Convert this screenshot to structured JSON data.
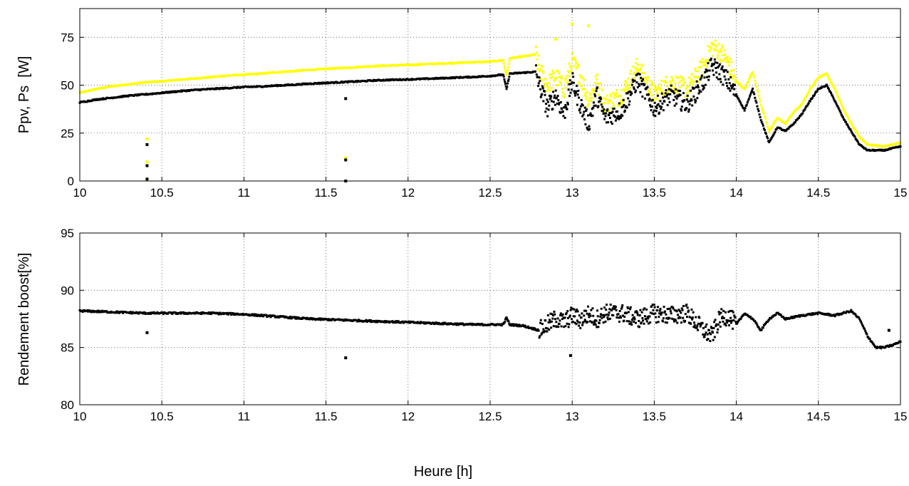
{
  "chart_data": [
    {
      "type": "scatter",
      "xlabel": "",
      "ylabel": "Ppv, Ps  [W]",
      "xlim": [
        10,
        15
      ],
      "ylim": [
        0,
        90
      ],
      "xticks": [
        10,
        10.5,
        11,
        11.5,
        12,
        12.5,
        13,
        13.5,
        14,
        14.5,
        15
      ],
      "yticks": [
        0,
        25,
        50,
        75
      ],
      "grid": true,
      "series": [
        {
          "color": "#ffff00",
          "x": [
            10,
            10.1,
            10.2,
            10.3,
            10.4,
            10.5,
            10.6,
            10.7,
            10.8,
            10.9,
            11,
            11.1,
            11.2,
            11.3,
            11.4,
            11.5,
            11.6,
            11.7,
            11.8,
            11.9,
            12,
            12.1,
            12.2,
            12.3,
            12.4,
            12.5,
            12.58,
            12.6,
            12.62,
            12.7,
            12.78,
            12.8,
            12.85,
            12.9,
            12.95,
            13,
            13.05,
            13.1,
            13.15,
            13.2,
            13.3,
            13.4,
            13.5,
            13.6,
            13.7,
            13.8,
            13.85,
            13.9,
            13.95,
            14,
            14.05,
            14.1,
            14.15,
            14.2,
            14.25,
            14.3,
            14.35,
            14.4,
            14.45,
            14.5,
            14.55,
            14.6,
            14.65,
            14.7,
            14.75,
            14.8,
            14.9,
            15
          ],
          "y": [
            46,
            48,
            49.5,
            50.5,
            51.5,
            52,
            52.8,
            53.5,
            54.2,
            55,
            55.5,
            56,
            56.8,
            57.3,
            58,
            58.5,
            59,
            59.5,
            60,
            60.3,
            60.5,
            61,
            61.3,
            61.7,
            62,
            62.3,
            63,
            55,
            64,
            65,
            66,
            58,
            50,
            55,
            48,
            62,
            55,
            42,
            52,
            40,
            45,
            60,
            45,
            52,
            48,
            60,
            70,
            68,
            62,
            52,
            48,
            57,
            40,
            26,
            33,
            30,
            36,
            40,
            48,
            54,
            56,
            48,
            38,
            30,
            23,
            19,
            18,
            20
          ],
          "outliers": [
            [
              10.41,
              22
            ],
            [
              10.41,
              10
            ],
            [
              10.41,
              1
            ],
            [
              11.62,
              12
            ],
            [
              11.62,
              0
            ],
            [
              12.9,
              74
            ],
            [
              13,
              82
            ],
            [
              13.1,
              81
            ]
          ]
        },
        {
          "color": "#000000",
          "x": [
            10,
            10.1,
            10.2,
            10.3,
            10.4,
            10.5,
            10.6,
            10.7,
            10.8,
            10.9,
            11,
            11.1,
            11.2,
            11.3,
            11.4,
            11.5,
            11.6,
            11.7,
            11.8,
            11.9,
            12,
            12.1,
            12.2,
            12.3,
            12.4,
            12.5,
            12.58,
            12.6,
            12.62,
            12.7,
            12.78,
            12.8,
            12.85,
            12.9,
            12.95,
            13,
            13.05,
            13.1,
            13.15,
            13.2,
            13.3,
            13.4,
            13.5,
            13.6,
            13.7,
            13.8,
            13.85,
            13.9,
            13.95,
            14,
            14.05,
            14.1,
            14.15,
            14.2,
            14.25,
            14.3,
            14.35,
            14.4,
            14.45,
            14.5,
            14.55,
            14.6,
            14.65,
            14.7,
            14.75,
            14.8,
            14.9,
            15
          ],
          "y": [
            41,
            42.5,
            43.5,
            44.5,
            45.2,
            46,
            46.8,
            47.5,
            48,
            48.5,
            49,
            49.3,
            49.8,
            50.2,
            50.8,
            51.2,
            51.6,
            52,
            52.5,
            52.8,
            53,
            53.3,
            53.6,
            54,
            54.3,
            54.8,
            55.5,
            48,
            56,
            56.5,
            57,
            50,
            38,
            45,
            35,
            52,
            40,
            30,
            45,
            33,
            37,
            53,
            38,
            45,
            40,
            52,
            60,
            57,
            52,
            45,
            37,
            48,
            32,
            20,
            28,
            26,
            30,
            35,
            42,
            48,
            50,
            42,
            33,
            26,
            19,
            16,
            16,
            18
          ],
          "outliers": [
            [
              10.41,
              19
            ],
            [
              10.41,
              8
            ],
            [
              10.41,
              1
            ],
            [
              11.62,
              43
            ],
            [
              11.62,
              11
            ],
            [
              11.62,
              0
            ]
          ]
        }
      ]
    },
    {
      "type": "scatter",
      "xlabel": "Heure [h]",
      "ylabel": "Rendement boost[%]",
      "xlim": [
        10,
        15
      ],
      "ylim": [
        80,
        95
      ],
      "xticks": [
        10,
        10.5,
        11,
        11.5,
        12,
        12.5,
        13,
        13.5,
        14,
        14.5,
        15
      ],
      "yticks": [
        80,
        85,
        90,
        95
      ],
      "grid": true,
      "series": [
        {
          "color": "#000000",
          "x": [
            10,
            10.2,
            10.4,
            10.6,
            10.8,
            11,
            11.2,
            11.4,
            11.6,
            11.8,
            12,
            12.2,
            12.4,
            12.58,
            12.6,
            12.62,
            12.7,
            12.8,
            12.85,
            12.9,
            12.95,
            13,
            13.05,
            13.1,
            13.15,
            13.2,
            13.3,
            13.4,
            13.5,
            13.6,
            13.7,
            13.8,
            13.85,
            13.9,
            13.95,
            14,
            14.05,
            14.1,
            14.15,
            14.2,
            14.25,
            14.3,
            14.4,
            14.5,
            14.6,
            14.7,
            14.75,
            14.8,
            14.85,
            14.9,
            14.95,
            15
          ],
          "y": [
            88.2,
            88.1,
            88,
            88,
            88,
            87.9,
            87.7,
            87.5,
            87.4,
            87.3,
            87.2,
            87.1,
            87,
            87,
            87.6,
            87,
            86.9,
            86.5,
            87,
            87.5,
            87.2,
            87.8,
            87.4,
            87.9,
            87.5,
            88,
            88,
            87.5,
            88,
            87.8,
            88,
            86.5,
            86,
            87.5,
            87.8,
            87,
            88,
            87.5,
            86.5,
            87.5,
            88,
            87.5,
            87.8,
            88,
            87.8,
            88.2,
            87.5,
            86,
            85,
            85,
            85.2,
            85.5
          ],
          "outliers": [
            [
              10.41,
              86.3
            ],
            [
              11.62,
              84.1
            ],
            [
              12.99,
              84.3
            ],
            [
              14.93,
              86.5
            ]
          ]
        }
      ]
    }
  ]
}
